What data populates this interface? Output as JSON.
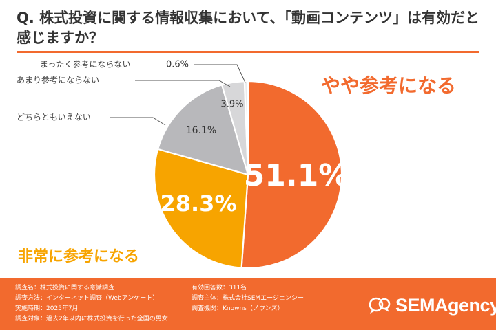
{
  "question": "Q. 株式投資に関する情報収集において、「動画コンテンツ」は有効だと感じますか？",
  "chart_data": {
    "type": "pie",
    "title": "Q. 株式投資に関する情報収集において、「動画コンテンツ」は有効だと感じますか？",
    "start": "12 o'clock, clockwise",
    "slices": [
      {
        "label": "やや参考になる",
        "value": 51.1,
        "value_label": "51.1%",
        "color": "#f26a2e"
      },
      {
        "label": "非常に参考になる",
        "value": 28.3,
        "value_label": "28.3%",
        "color": "#f7a400"
      },
      {
        "label": "どちらともいえない",
        "value": 16.1,
        "value_label": "16.1%",
        "color": "#b8b8bb"
      },
      {
        "label": "あまり参考にならない",
        "value": 3.9,
        "value_label": "3.9%",
        "color": "#d7d7d9"
      },
      {
        "label": "まったく参考にならない",
        "value": 0.6,
        "value_label": "0.6%",
        "color": "#ebebec"
      }
    ]
  },
  "colors": {
    "accent": "#f26a2e",
    "yellow": "#f7a400",
    "gray": "#b8b8bb",
    "leader": "#555555"
  },
  "footer": {
    "left_lines": [
      "調査名：株式投資に関する意識調査",
      "調査方法：インターネット調査（Webアンケート）",
      "実施時期：2025年7月",
      "調査対象：過去2年以内に株式投資を行った全国の男女"
    ],
    "right_lines": [
      "有効回答数：311名",
      "調査主体：株式会社SEMエージェンシー",
      "調査機関：Knowns（ノウンズ）"
    ],
    "brand": "SEMAgency",
    "brand_logo_icon": "chat-bubble-logo-icon"
  }
}
